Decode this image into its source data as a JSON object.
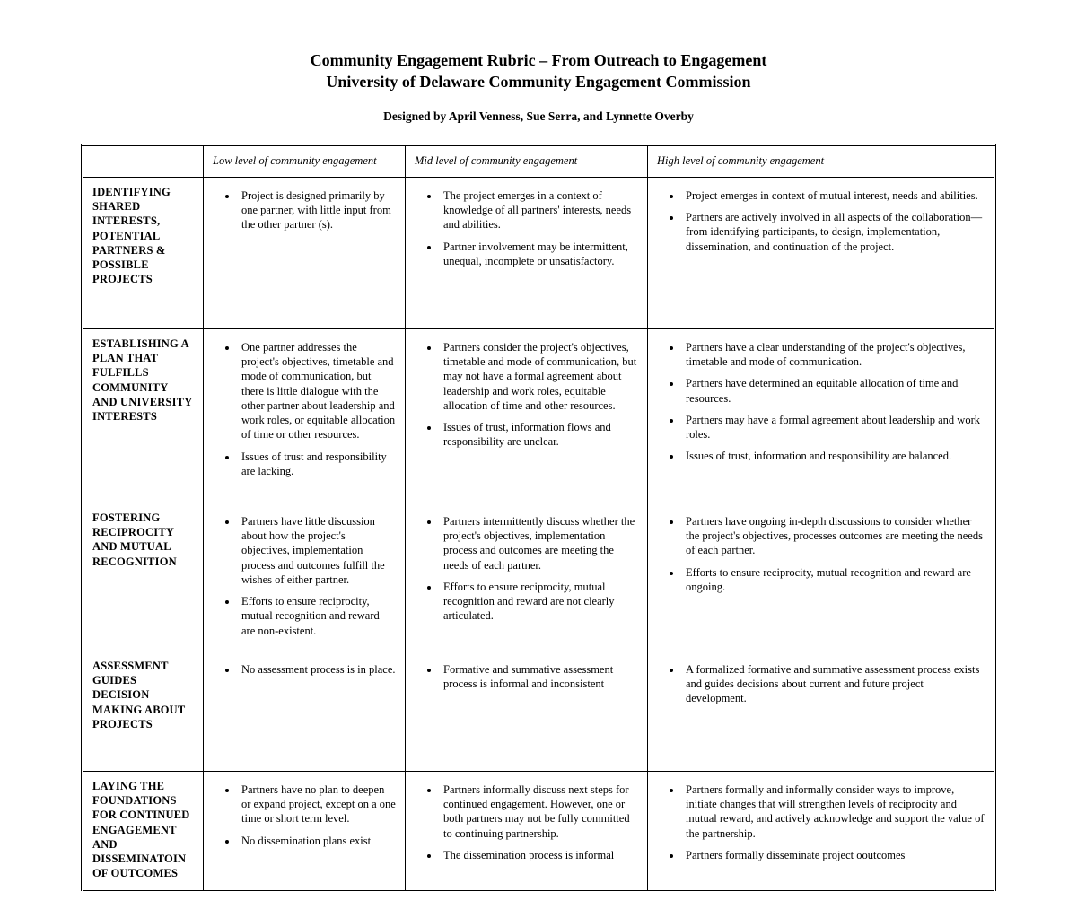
{
  "title_line_1": "Community Engagement Rubric – From Outreach to Engagement",
  "title_line_2": "University of Delaware Community Engagement Commission",
  "byline": "Designed by April Venness, Sue Serra, and Lynnette Overby",
  "columns": {
    "low": "Low level of community engagement",
    "mid": "Mid level of community engagement",
    "high": "High level of community engagement"
  },
  "rows": [
    {
      "label": "IDENTIFYING SHARED INTERESTS, POTENTIAL PARTNERS & POSSIBLE PROJECTS",
      "low": [
        "Project is designed primarily by one partner, with little input from the other partner (s)."
      ],
      "mid": [
        "The project emerges in a context of knowledge of all partners' interests, needs and abilities.",
        "Partner involvement may be intermittent, unequal, incomplete or unsatisfactory."
      ],
      "high": [
        "Project emerges in context of mutual interest, needs and abilities.",
        "Partners are actively involved in all aspects of the collaboration—from identifying participants, to design, implementation, dissemination, and continuation of the project."
      ]
    },
    {
      "label": "ESTABLISHING A PLAN THAT FULFILLS COMMUNITY AND UNIVERSITY INTERESTS",
      "low": [
        "One partner addresses the project's objectives, timetable and mode of communication, but there is little dialogue with the other partner about leadership and work roles, or equitable allocation of time or other resources.",
        "Issues of trust and responsibility are lacking."
      ],
      "mid": [
        "Partners consider the project's objectives, timetable and mode of communication, but may not have a formal agreement about leadership and work roles, equitable allocation of time and other resources.",
        "Issues of trust, information flows and responsibility are unclear."
      ],
      "high": [
        "Partners have a clear understanding of the project's objectives, timetable and mode of communication.",
        "Partners have determined an equitable allocation of time and resources.",
        "Partners may have a formal agreement about leadership and work roles.",
        "Issues of trust, information and responsibility are balanced."
      ]
    },
    {
      "label": "FOSTERING RECIPROCITY AND MUTUAL RECOGNITION",
      "low": [
        "Partners have little discussion about how the project's objectives, implementation process and outcomes fulfill the wishes of either partner.",
        "Efforts to ensure reciprocity, mutual recognition and reward are non-existent."
      ],
      "mid": [
        "Partners intermittently discuss whether the project's objectives, implementation process and outcomes are meeting the needs of each partner.",
        "Efforts to ensure reciprocity, mutual recognition and reward are not clearly articulated."
      ],
      "high": [
        "Partners have ongoing in-depth discussions to consider whether the project's objectives, processes outcomes are meeting the needs of each partner.",
        "Efforts to ensure reciprocity, mutual recognition and reward are ongoing."
      ]
    },
    {
      "label": "ASSESSMENT GUIDES DECISION MAKING ABOUT PROJECTS",
      "low": [
        "No assessment process is in place."
      ],
      "mid": [
        "Formative and summative assessment process is informal and inconsistent"
      ],
      "high": [
        "A formalized formative and summative assessment process exists and guides decisions about current and future project development."
      ]
    },
    {
      "label": "LAYING THE FOUNDATIONS FOR CONTINUED ENGAGEMENT AND DISSEMINATOIN OF OUTCOMES",
      "low": [
        "Partners have no plan to deepen or expand project, except on a one time or short term level.",
        "No dissemination plans exist"
      ],
      "mid": [
        "Partners informally discuss next steps for continued engagement. However, one or both partners may not be fully committed to continuing partnership.",
        "The dissemination process is informal"
      ],
      "high": [
        "Partners formally and informally consider ways to improve, initiate changes that will strengthen levels of reciprocity and mutual reward, and actively acknowledge and support the value of the partnership.",
        "Partners formally disseminate project ooutcomes"
      ]
    }
  ]
}
